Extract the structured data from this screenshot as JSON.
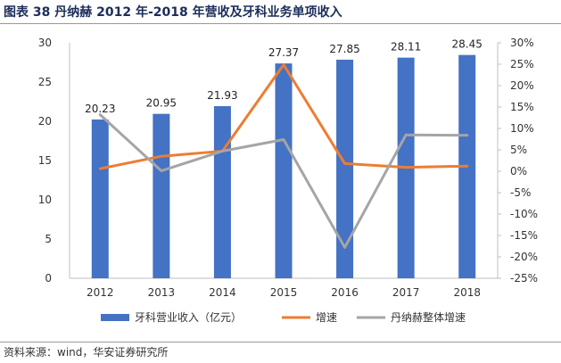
{
  "title": "图表 38 丹纳赫 2012 年-2018 年营收及牙科业务单项收入",
  "source": "资料来源：wind，华安证券研究所",
  "chart_data": {
    "type": "bar",
    "categories": [
      "2012",
      "2013",
      "2014",
      "2015",
      "2016",
      "2017",
      "2018"
    ],
    "series": [
      {
        "name": "牙科营业收入（亿元）",
        "type": "bar",
        "axis": "left",
        "color": "#4472C4",
        "values": [
          20.23,
          20.95,
          21.93,
          27.37,
          27.85,
          28.11,
          28.45
        ],
        "labels": [
          "20.23",
          "20.95",
          "21.93",
          "27.37",
          "27.85",
          "28.11",
          "28.45"
        ]
      },
      {
        "name": "增速",
        "type": "line",
        "axis": "right",
        "color": "#ED7D31",
        "values": [
          0.6,
          3.5,
          4.7,
          24.9,
          1.8,
          0.9,
          1.2
        ]
      },
      {
        "name": "丹纳赫整体增速",
        "type": "line",
        "axis": "right",
        "color": "#A5A5A5",
        "values": [
          13.2,
          0.1,
          4.7,
          7.4,
          -17.8,
          8.5,
          8.4
        ]
      }
    ],
    "left_axis": {
      "min": 0,
      "max": 30,
      "ticks": [
        "0",
        "5",
        "10",
        "15",
        "20",
        "25",
        "30"
      ]
    },
    "right_axis": {
      "min": -25,
      "max": 30,
      "ticks": [
        "-25%",
        "-20%",
        "-15%",
        "-10%",
        "-5%",
        "0%",
        "5%",
        "10%",
        "15%",
        "20%",
        "25%",
        "30%"
      ]
    },
    "grid": false,
    "legend_position": "bottom"
  }
}
